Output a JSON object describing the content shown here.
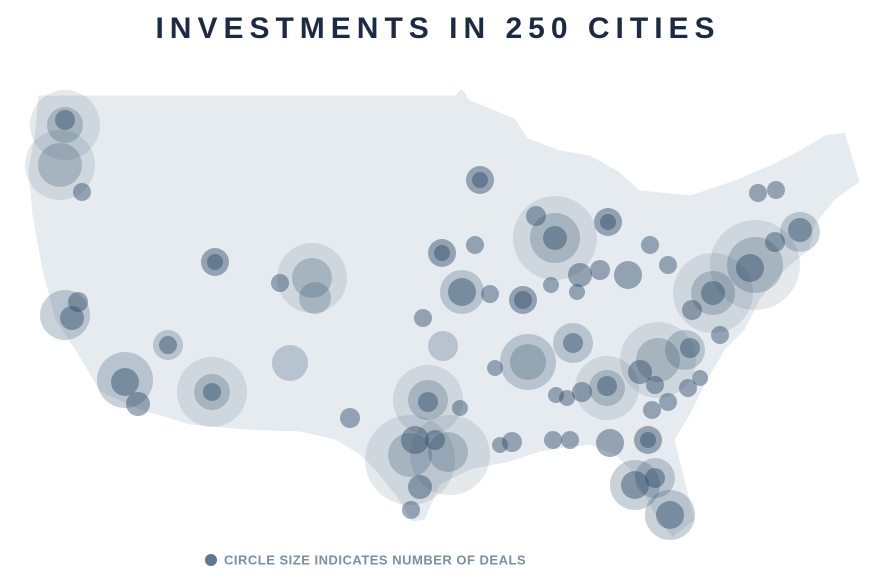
{
  "title": "INVESTMENTS IN 250 CITIES",
  "legend": "CIRCLE SIZE INDICATES NUMBER OF DEALS"
}
